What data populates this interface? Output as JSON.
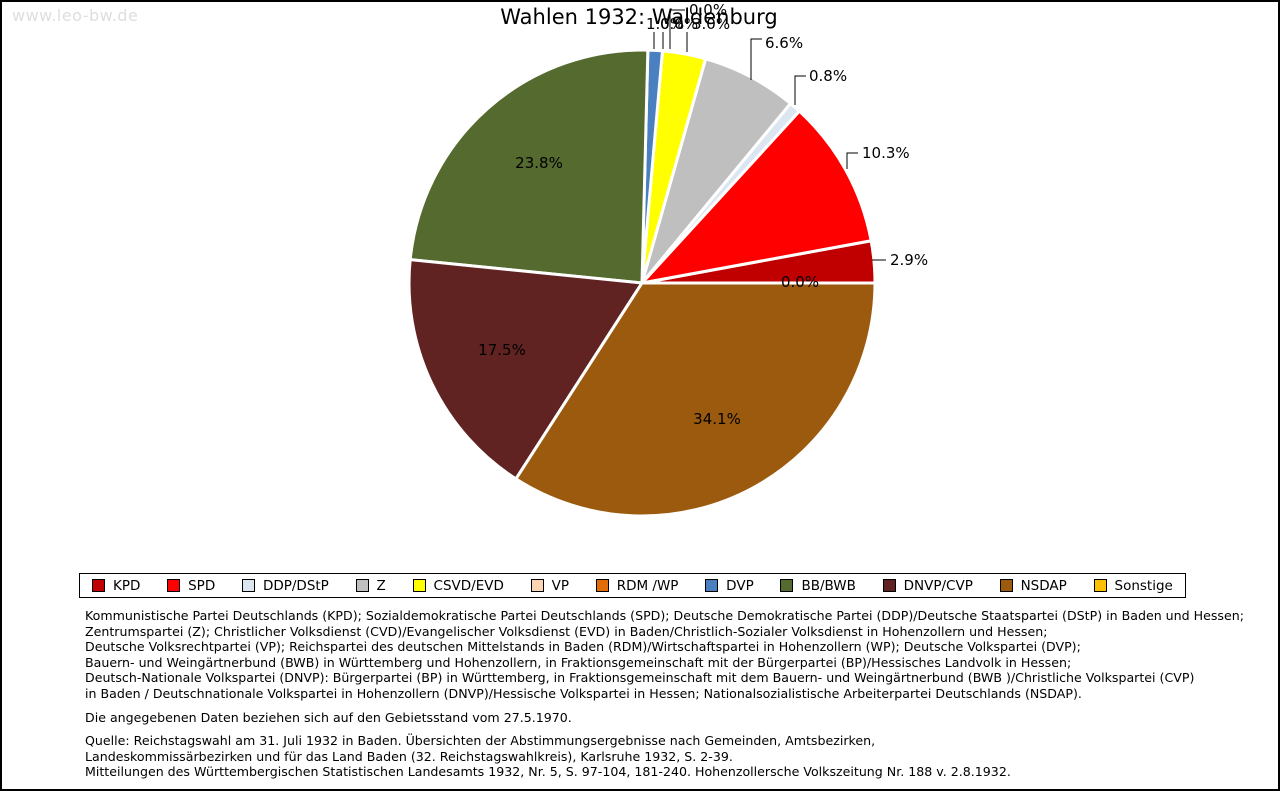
{
  "watermark": "www.leo-bw.de",
  "title": "Wahlen 1932: Waldenburg",
  "chart_data": {
    "type": "pie",
    "title": "Wahlen 1932: Waldenburg",
    "unit": "percent",
    "direction": "counterclockwise",
    "start_angle_deg": 0,
    "legend_position": "bottom",
    "series": [
      {
        "name": "KPD",
        "value": 2.9,
        "display": "2.9%",
        "color": "#c00000"
      },
      {
        "name": "SPD",
        "value": 10.3,
        "display": "10.3%",
        "color": "#ff0000"
      },
      {
        "name": "DDP/DStP",
        "value": 0.8,
        "display": "0.8%",
        "color": "#dce6f1"
      },
      {
        "name": "Z",
        "value": 6.6,
        "display": "6.6%",
        "color": "#bfbfbf"
      },
      {
        "name": "CSVD/EVD",
        "value": 3.0,
        "display": "3.0%",
        "color": "#ffff00"
      },
      {
        "name": "VP",
        "value": 0.0,
        "display": "0.0%",
        "color": "#fcd5b4"
      },
      {
        "name": "RDM /WP",
        "value": 0.0,
        "display": "0.0%",
        "color": "#e36c0a"
      },
      {
        "name": "DVP",
        "value": 1.0,
        "display": "1.0%",
        "color": "#4a80c0"
      },
      {
        "name": "BB/BWB",
        "value": 23.8,
        "display": "23.8%",
        "color": "#546a2e"
      },
      {
        "name": "DNVP/CVP",
        "value": 17.5,
        "display": "17.5%",
        "color": "#602322"
      },
      {
        "name": "NSDAP",
        "value": 34.1,
        "display": "34.1%",
        "color": "#9b5a0e"
      },
      {
        "name": "Sonstige",
        "value": 0.0,
        "display": "0.0%",
        "color": "#ffc000"
      }
    ]
  },
  "notes_lines": [
    "Kommunistische Partei Deutschlands (KPD); Sozialdemokratische Partei Deutschlands (SPD); Deutsche Demokratische Partei (DDP)/Deutsche Staatspartei (DStP) in Baden und Hessen;",
    "Zentrumspartei (Z); Christlicher Volksdienst (CVD)/Evangelischer Volksdienst (EVD) in Baden/Christlich-Sozialer Volksdienst in Hohenzollern und Hessen;",
    "Deutsche Volksrechtpartei (VP); Reichspartei des deutschen Mittelstands in Baden (RDM)/Wirtschaftspartei in Hohenzollern (WP); Deutsche Volkspartei (DVP);",
    "Bauern- und Weingärtnerbund (BWB) in Württemberg und Hohenzollern, in Fraktionsgemeinschaft mit der Bürgerpartei (BP)/Hessisches Landvolk in Hessen;",
    "Deutsch-Nationale Volkspartei (DNVP): Bürgerpartei (BP) in Württemberg, in Fraktionsgemeinschaft mit dem Bauern- und Weingärtnerbund (BWB )/Christliche Volkspartei (CVP)",
    "in Baden / Deutschnationale Volkspartei in Hohenzollern (DNVP)/Hessische Volkspartei in Hessen; Nationalsozialistische Arbeiterpartei Deutschlands (NSDAP)."
  ],
  "gebietsstand": "Die angegebenen Daten beziehen sich auf den Gebietsstand vom 27.5.1970.",
  "quelle_lines": [
    "Quelle: Reichstagswahl am 31. Juli 1932 in Baden. Übersichten der Abstimmungsergebnisse nach Gemeinden, Amtsbezirken,",
    "Landeskommissärbezirken und für das Land Baden (32. Reichstagswahlkreis), Karlsruhe 1932, S. 2-39.",
    "Mitteilungen des Württembergischen Statistischen Landesamts 1932, Nr. 5, S. 97-104, 181-240. Hohenzollersche Volkszeitung Nr. 188 v. 2.8.1932."
  ]
}
